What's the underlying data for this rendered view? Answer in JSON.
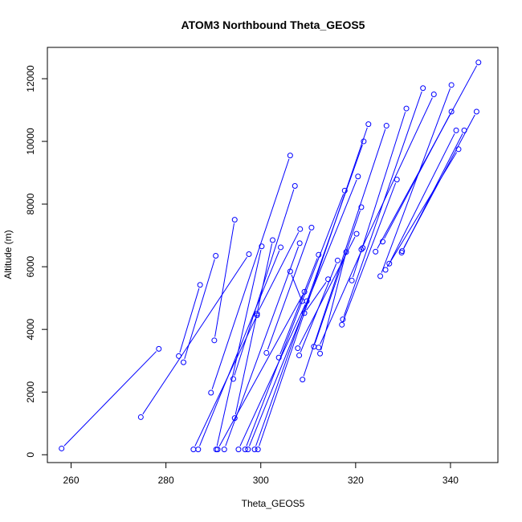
{
  "chart_data": {
    "type": "line",
    "title": "ATOM3 Northbound Theta_GEOS5",
    "xlabel": "Theta_GEOS5",
    "ylabel": "Altitude (m)",
    "xlim": [
      255,
      350
    ],
    "ylim": [
      -250,
      13000
    ],
    "x_ticks": [
      260,
      280,
      300,
      320,
      340
    ],
    "y_ticks": [
      0,
      2000,
      4000,
      6000,
      8000,
      10000,
      12000
    ],
    "grid": false,
    "marker": "open-circle",
    "series_color": "#0000FF",
    "series": [
      {
        "points": [
          [
            258,
            200
          ],
          [
            278.5,
            3380
          ]
        ]
      },
      {
        "points": [
          [
            274.7,
            1200
          ],
          [
            297.5,
            6400
          ]
        ]
      },
      {
        "points": [
          [
            282.7,
            3150
          ],
          [
            287.2,
            5420
          ]
        ]
      },
      {
        "points": [
          [
            283.7,
            2950
          ],
          [
            290.5,
            6350
          ]
        ]
      },
      {
        "points": [
          [
            290.2,
            3650
          ],
          [
            294.5,
            7500
          ]
        ]
      },
      {
        "points": [
          [
            289.5,
            1980
          ],
          [
            306.2,
            9550
          ]
        ]
      },
      {
        "points": [
          [
            294.2,
            2420
          ],
          [
            307.2,
            8580
          ]
        ]
      },
      {
        "points": [
          [
            294.5,
            1170
          ],
          [
            302.5,
            6850
          ]
        ]
      },
      {
        "points": [
          [
            285.8,
            170
          ],
          [
            299.2,
            4450
          ]
        ]
      },
      {
        "points": [
          [
            286.8,
            170
          ],
          [
            304.2,
            6620
          ]
        ]
      },
      {
        "points": [
          [
            290.6,
            170
          ],
          [
            300.2,
            6650
          ]
        ]
      },
      {
        "points": [
          [
            290.9,
            170
          ],
          [
            309.2,
            5200
          ]
        ]
      },
      {
        "points": [
          [
            292.3,
            170
          ],
          [
            308.2,
            6750
          ]
        ]
      },
      {
        "points": [
          [
            295.3,
            170
          ],
          [
            309.7,
            4900
          ]
        ]
      },
      {
        "points": [
          [
            296.7,
            170
          ],
          [
            317.7,
            8430
          ]
        ]
      },
      {
        "points": [
          [
            297.3,
            170
          ],
          [
            320.5,
            8880
          ]
        ]
      },
      {
        "points": [
          [
            298.7,
            170
          ],
          [
            321.7,
            10000
          ]
        ]
      },
      {
        "points": [
          [
            299.4,
            170
          ],
          [
            322.7,
            10550
          ]
        ]
      },
      {
        "points": [
          [
            299.2,
            4500
          ],
          [
            308.3,
            7200
          ]
        ]
      },
      {
        "points": [
          [
            301.2,
            3250
          ],
          [
            310.7,
            7250
          ]
        ]
      },
      {
        "points": [
          [
            303.8,
            3100
          ],
          [
            312.2,
            6380
          ]
        ]
      },
      {
        "points": [
          [
            306.2,
            5850
          ],
          [
            308.7,
            4900
          ]
        ]
      },
      {
        "points": [
          [
            307.8,
            3400
          ],
          [
            320.2,
            7050
          ]
        ]
      },
      {
        "points": [
          [
            308.1,
            3170
          ],
          [
            316.2,
            6200
          ]
        ]
      },
      {
        "points": [
          [
            309.2,
            4520
          ],
          [
            314.2,
            5600
          ]
        ]
      },
      {
        "points": [
          [
            308.8,
            2400
          ],
          [
            326.5,
            10500
          ]
        ]
      },
      {
        "points": [
          [
            311.2,
            3450
          ],
          [
            321.2,
            7900
          ]
        ]
      },
      {
        "points": [
          [
            312.2,
            3420
          ],
          [
            321.5,
            6600
          ]
        ]
      },
      {
        "points": [
          [
            312.5,
            3230
          ],
          [
            318.0,
            6470
          ]
        ]
      },
      {
        "points": [
          [
            317.1,
            4150
          ],
          [
            328.7,
            8780
          ]
        ]
      },
      {
        "points": [
          [
            317.3,
            4320
          ],
          [
            334.2,
            11700
          ]
        ]
      },
      {
        "points": [
          [
            319.2,
            5560
          ],
          [
            330.7,
            11050
          ]
        ]
      },
      {
        "points": [
          [
            321.2,
            6550
          ],
          [
            336.5,
            11500
          ]
        ]
      },
      {
        "points": [
          [
            325.2,
            5700
          ],
          [
            340.2,
            11800
          ]
        ]
      },
      {
        "points": [
          [
            326.3,
            5900
          ],
          [
            341.7,
            9750
          ]
        ]
      },
      {
        "points": [
          [
            327.1,
            6100
          ],
          [
            341.2,
            10350
          ]
        ]
      },
      {
        "points": [
          [
            329.7,
            6450
          ],
          [
            342.9,
            10350
          ]
        ]
      },
      {
        "points": [
          [
            329.8,
            6500
          ],
          [
            345.5,
            10950
          ]
        ]
      },
      {
        "points": [
          [
            325.7,
            6800
          ],
          [
            340.2,
            10950
          ]
        ]
      },
      {
        "points": [
          [
            324.2,
            6480
          ],
          [
            345.9,
            12520
          ]
        ]
      }
    ]
  }
}
